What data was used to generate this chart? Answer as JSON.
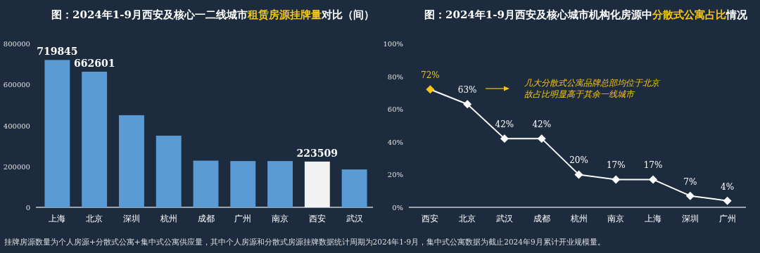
{
  "chart_data": [
    {
      "type": "bar",
      "title": "图：2024年1-9月西安及核心一二线城市**租赁房源挂牌量**对比（间）",
      "categories": [
        "上海",
        "北京",
        "深圳",
        "杭州",
        "成都",
        "广州",
        "南京",
        "西安",
        "武汉"
      ],
      "values": [
        719845,
        662601,
        450000,
        350000,
        228000,
        226000,
        226000,
        223509,
        185000
      ],
      "value_labels": [
        "719845",
        "662601",
        null,
        null,
        null,
        null,
        null,
        "223509",
        null
      ],
      "colors": [
        "#5b9bd5",
        "#5b9bd5",
        "#5b9bd5",
        "#5b9bd5",
        "#5b9bd5",
        "#5b9bd5",
        "#5b9bd5",
        "#f2f2f2",
        "#5b9bd5"
      ],
      "ylim": [
        0,
        800000
      ],
      "yticks": [
        0,
        200000,
        400000,
        600000,
        800000
      ],
      "grid": false,
      "annotations": [
        "挂牌房源数量为个人房源+分散式公寓+集中式公寓供应量，其中个人房源和分散式房源挂牌数据统计周期为2024年1-9月，集中式公寓数据为截止2024年9月累计开业规模量。"
      ]
    },
    {
      "type": "line",
      "title": "图：2024年1-9月西安及核心城市机构化房源中**分散式公寓占比**情况",
      "categories": [
        "西安",
        "北京",
        "武汉",
        "成都",
        "杭州",
        "南京",
        "上海",
        "深圳",
        "广州"
      ],
      "values": [
        72,
        63,
        42,
        42,
        20,
        17,
        17,
        7,
        4
      ],
      "value_labels": [
        "72%",
        "63%",
        "42%",
        "42%",
        "20%",
        "17%",
        "17%",
        "7%",
        "4%"
      ],
      "color": "#ffffff",
      "colors": [
        "#f5c518",
        "#ffffff",
        "#ffffff",
        "#ffffff",
        "#ffffff",
        "#ffffff",
        "#ffffff",
        "#ffffff",
        "#ffffff"
      ],
      "marker": "diamond",
      "line_style": "solid",
      "ylim": [
        0,
        100
      ],
      "yticks": [
        {
          "value": 0,
          "label": "0%"
        },
        {
          "value": 20,
          "label": "20%"
        },
        {
          "value": 40,
          "label": "40%"
        },
        {
          "value": 60,
          "label": "60%"
        },
        {
          "value": 80,
          "label": "80%"
        },
        {
          "value": 100,
          "label": "100%"
        }
      ],
      "grid": false,
      "annotations": [
        "几大分散式公寓品牌总部均位于北京故占比明显高于其余一线城市"
      ]
    }
  ]
}
